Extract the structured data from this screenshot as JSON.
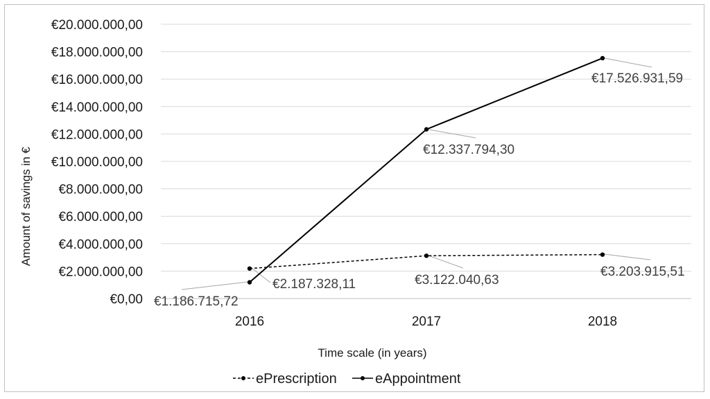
{
  "chart_data": {
    "type": "line",
    "title": "",
    "xlabel": "Time scale (in years)",
    "ylabel": "Amount of savings in €",
    "categories": [
      "2016",
      "2017",
      "2018"
    ],
    "ylim": [
      0,
      20000000
    ],
    "y_ticks": [
      "€0,00",
      "€2.000.000,00",
      "€4.000.000,00",
      "€6.000.000,00",
      "€8.000.000,00",
      "€10.000.000,00",
      "€12.000.000,00",
      "€14.000.000,00",
      "€16.000.000,00",
      "€18.000.000,00",
      "€20.000.000,00"
    ],
    "grid": true,
    "legend_position": "bottom",
    "series": [
      {
        "name": "ePrescription",
        "style": "dashed",
        "color": "#000000",
        "values": [
          2187328.11,
          3122040.63,
          3203915.51
        ],
        "labels": [
          "€2.187.328,11",
          "€3.122.040,63",
          "€3.203.915,51"
        ]
      },
      {
        "name": "eAppointment",
        "style": "solid",
        "color": "#000000",
        "values": [
          1186715.72,
          12337794.3,
          17526931.59
        ],
        "labels": [
          "€1.186.715,72",
          "€12.337.794,30",
          "€17.526.931,59"
        ]
      }
    ]
  }
}
